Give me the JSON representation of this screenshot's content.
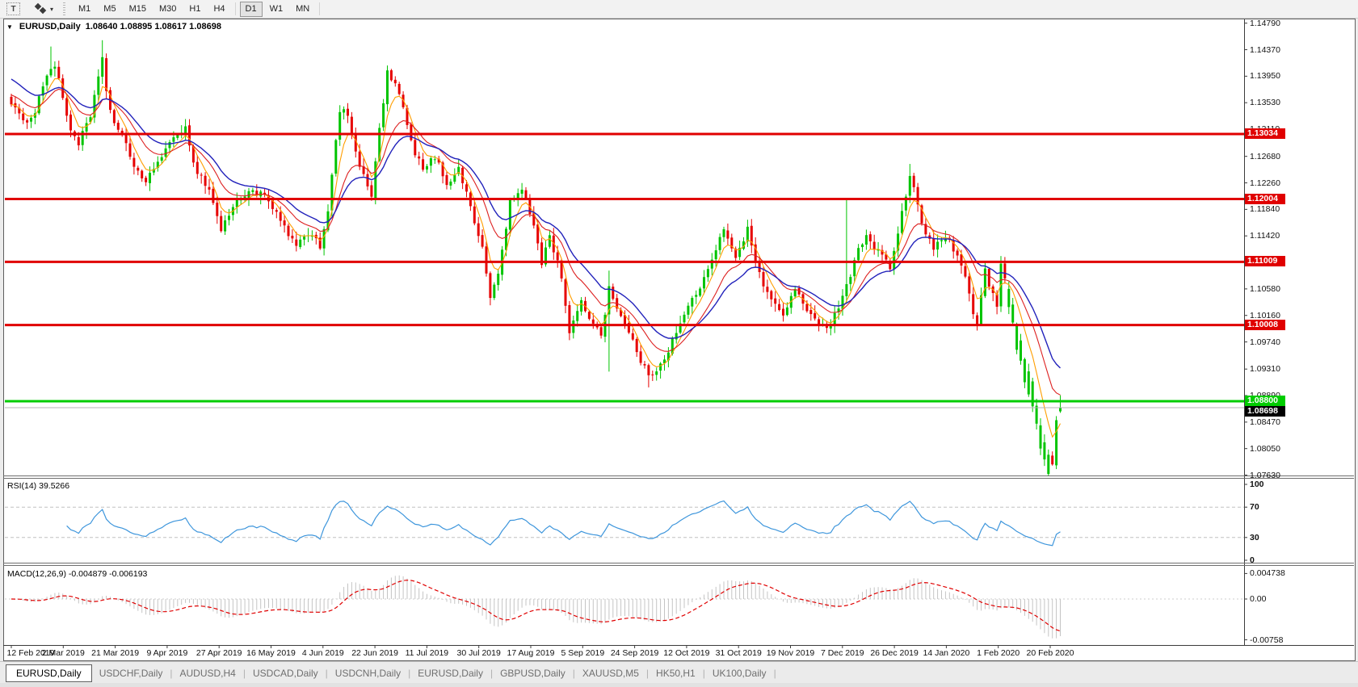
{
  "toolbar": {
    "text_tool_glyph": "T",
    "timeframes": [
      "M1",
      "M5",
      "M15",
      "M30",
      "H1",
      "H4",
      "D1",
      "W1",
      "MN"
    ],
    "active_timeframe": "D1"
  },
  "chart": {
    "symbol_label": "EURUSD,Daily",
    "ohlc_label": "1.08640 1.08895 1.08617 1.08698",
    "collapse_arrow": "▼"
  },
  "price_axis": {
    "ticks": [
      "1.14790",
      "1.14370",
      "1.13950",
      "1.13530",
      "1.13110",
      "1.12680",
      "1.12260",
      "1.11840",
      "1.11420",
      "1.10580",
      "1.10160",
      "1.09740",
      "1.09310",
      "1.08890",
      "1.08470",
      "1.08050",
      "1.07630"
    ],
    "badges": [
      {
        "value": "1.13034",
        "type": "red"
      },
      {
        "value": "1.12004",
        "type": "red"
      },
      {
        "value": "1.11009",
        "type": "red"
      },
      {
        "value": "1.10008",
        "type": "red"
      },
      {
        "value": "1.08800",
        "type": "green"
      },
      {
        "value": "1.08698",
        "type": "black"
      }
    ]
  },
  "time_axis": {
    "labels": [
      "12 Feb 2019",
      "2 Mar 2019",
      "21 Mar 2019",
      "9 Apr 2019",
      "27 Apr 2019",
      "16 May 2019",
      "4 Jun 2019",
      "22 Jun 2019",
      "11 Jul 2019",
      "30 Jul 2019",
      "17 Aug 2019",
      "5 Sep 2019",
      "24 Sep 2019",
      "12 Oct 2019",
      "31 Oct 2019",
      "19 Nov 2019",
      "7 Dec 2019",
      "26 Dec 2019",
      "14 Jan 2020",
      "1 Feb 2020",
      "20 Feb 2020"
    ]
  },
  "rsi": {
    "name_label": "RSI(14)",
    "value_label": "39.5266",
    "axis_labels": [
      "100",
      "70",
      "30",
      "0"
    ],
    "levels": [
      70,
      30
    ]
  },
  "macd": {
    "name_label": "MACD(12,26,9)",
    "values_label": "-0.004879 -0.006193",
    "axis_labels": [
      "0.004738",
      "0.00",
      "-0.00758"
    ]
  },
  "tabs": {
    "items": [
      "EURUSD,Daily",
      "USDCHF,Daily",
      "AUDUSD,H4",
      "USDCAD,Daily",
      "USDCNH,Daily",
      "EURUSD,Daily",
      "GBPUSD,Daily",
      "XAUUSD,M5",
      "HK50,H1",
      "UK100,Daily"
    ],
    "active_index": 0
  },
  "colors": {
    "bull": "#00c400",
    "bear": "#e60000",
    "ma_fast": "#ff9e00",
    "ma_mid": "#dd2020",
    "ma_slow": "#2222bb",
    "level_red": "#e00000",
    "level_green": "#00cc00",
    "current_price_line": "#b4b4b4",
    "rsi_line": "#3e96dc",
    "rsi_level_dash": "#c0c0c0",
    "macd_hist": "#c4c4c4",
    "macd_signal": "#e00000",
    "badge_red": "#e00000",
    "badge_green": "#00cc00",
    "badge_black": "#000000",
    "axis_line": "#3c3c3c"
  },
  "chart_data": {
    "type": "candlestick",
    "symbol": "EURUSD",
    "timeframe": "Daily",
    "visible_date_range": [
      "12 Feb 2019",
      "24 Feb 2020"
    ],
    "price_range_visible": [
      1.0763,
      1.1479
    ],
    "bars": 266,
    "last_ohlc": {
      "open": 1.0864,
      "high": 1.08895,
      "low": 1.08617,
      "close": 1.08698
    },
    "horizontal_levels": [
      {
        "price": 1.13034,
        "color": "red",
        "style": "solid-thick"
      },
      {
        "price": 1.12004,
        "color": "red",
        "style": "solid-thick"
      },
      {
        "price": 1.11009,
        "color": "red",
        "style": "solid-thick"
      },
      {
        "price": 1.10008,
        "color": "red",
        "style": "solid-thick"
      },
      {
        "price": 1.088,
        "color": "green",
        "style": "solid-thick"
      }
    ],
    "current_price": 1.08698,
    "close_anchors": [
      [
        0,
        1.1355
      ],
      [
        3,
        1.132
      ],
      [
        6,
        1.134
      ],
      [
        9,
        1.14
      ],
      [
        11,
        1.1412
      ],
      [
        13,
        1.136
      ],
      [
        15,
        1.131
      ],
      [
        17,
        1.129
      ],
      [
        20,
        1.133
      ],
      [
        22,
        1.139
      ],
      [
        23,
        1.1428
      ],
      [
        24,
        1.137
      ],
      [
        26,
        1.132
      ],
      [
        28,
        1.1298
      ],
      [
        31,
        1.1255
      ],
      [
        34,
        1.1225
      ],
      [
        38,
        1.1272
      ],
      [
        42,
        1.13
      ],
      [
        44,
        1.132
      ],
      [
        46,
        1.1255
      ],
      [
        50,
        1.1215
      ],
      [
        53,
        1.1152
      ],
      [
        56,
        1.1188
      ],
      [
        60,
        1.1215
      ],
      [
        64,
        1.1205
      ],
      [
        68,
        1.1165
      ],
      [
        72,
        1.1125
      ],
      [
        76,
        1.1148
      ],
      [
        78,
        1.1125
      ],
      [
        80,
        1.1185
      ],
      [
        83,
        1.134
      ],
      [
        85,
        1.1335
      ],
      [
        88,
        1.125
      ],
      [
        91,
        1.1205
      ],
      [
        93,
        1.131
      ],
      [
        95,
        1.14
      ],
      [
        98,
        1.1368
      ],
      [
        101,
        1.129
      ],
      [
        104,
        1.1245
      ],
      [
        107,
        1.1268
      ],
      [
        110,
        1.1225
      ],
      [
        113,
        1.1248
      ],
      [
        116,
        1.119
      ],
      [
        119,
        1.112
      ],
      [
        121,
        1.1045
      ],
      [
        123,
        1.1082
      ],
      [
        126,
        1.1195
      ],
      [
        129,
        1.1215
      ],
      [
        132,
        1.116
      ],
      [
        134,
        1.11
      ],
      [
        136,
        1.1142
      ],
      [
        139,
        1.1078
      ],
      [
        141,
        1.099
      ],
      [
        144,
        1.1035
      ],
      [
        147,
        1.1005
      ],
      [
        149,
        1.0985
      ],
      [
        151,
        1.106
      ],
      [
        153,
        1.103
      ],
      [
        155,
        1.1
      ],
      [
        157,
        1.0975
      ],
      [
        159,
        1.0945
      ],
      [
        161,
        1.0918
      ],
      [
        163,
        1.0932
      ],
      [
        165,
        1.095
      ],
      [
        168,
        1.0988
      ],
      [
        171,
        1.103
      ],
      [
        174,
        1.1062
      ],
      [
        177,
        1.11
      ],
      [
        180,
        1.1155
      ],
      [
        183,
        1.111
      ],
      [
        186,
        1.1152
      ],
      [
        189,
        1.108
      ],
      [
        192,
        1.104
      ],
      [
        195,
        1.1015
      ],
      [
        198,
        1.1062
      ],
      [
        201,
        1.1018
      ],
      [
        204,
        1.1005
      ],
      [
        207,
        1.1
      ],
      [
        209,
        1.1032
      ],
      [
        212,
        1.1082
      ],
      [
        214,
        1.1118
      ],
      [
        216,
        1.1148
      ],
      [
        218,
        1.1122
      ],
      [
        220,
        1.1112
      ],
      [
        222,
        1.1092
      ],
      [
        224,
        1.1142
      ],
      [
        225,
        1.1176
      ],
      [
        227,
        1.1238
      ],
      [
        228,
        1.122
      ],
      [
        230,
        1.1162
      ],
      [
        233,
        1.112
      ],
      [
        236,
        1.1142
      ],
      [
        239,
        1.1108
      ],
      [
        241,
        1.1072
      ],
      [
        243,
        1.1022
      ],
      [
        244,
        1.1004
      ],
      [
        246,
        1.1088
      ],
      [
        247,
        1.1062
      ],
      [
        249,
        1.1032
      ],
      [
        250,
        1.1096
      ],
      [
        251,
        1.1076
      ],
      [
        252,
        1.1058
      ],
      [
        253,
        1.1032
      ],
      [
        254,
        1.1002
      ],
      [
        255,
        1.0978
      ],
      [
        256,
        1.0948
      ],
      [
        257,
        1.0926
      ],
      [
        258,
        1.0912
      ],
      [
        259,
        1.0872
      ],
      [
        260,
        1.0842
      ],
      [
        261,
        1.0816
      ],
      [
        262,
        1.0796
      ],
      [
        263,
        1.078
      ],
      [
        264,
        1.085
      ],
      [
        265,
        1.08698
      ]
    ],
    "pinned_closes": {
      "263": 1.078,
      "264": 1.085,
      "265": 1.08698
    },
    "wick_highs": {
      "10": 1.1442,
      "23": 1.1452,
      "95": 1.1412,
      "151": 1.1087,
      "211": 1.1199,
      "227": 1.1256,
      "265": 1.08895
    },
    "wick_lows": {
      "121": 1.1032,
      "151": 1.0927,
      "161": 1.0902,
      "244": 1.0992,
      "263": 1.0778,
      "265": 1.08617
    },
    "force_green_range": [
      252,
      262
    ],
    "moving_averages": [
      {
        "name": "fast",
        "color_key": "ma_fast"
      },
      {
        "name": "medium",
        "color_key": "ma_mid"
      },
      {
        "name": "slow",
        "color_key": "ma_slow"
      }
    ],
    "indicators": [
      {
        "name": "RSI",
        "period": 14,
        "current": 39.5266,
        "levels": [
          30,
          70
        ],
        "range": [
          0,
          100
        ]
      },
      {
        "name": "MACD",
        "params": [
          12,
          26,
          9
        ],
        "main": -0.004879,
        "signal": -0.006193,
        "axis_range": [
          -0.00758,
          0.004738
        ]
      }
    ]
  }
}
